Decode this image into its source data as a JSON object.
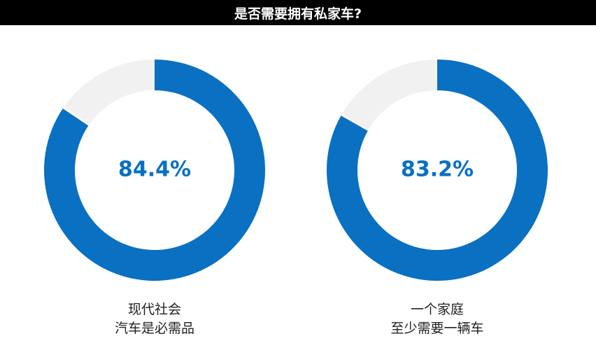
{
  "title": "是否需要拥有私家车?",
  "colors": {
    "accent": "#0A70C2",
    "track": "#F1F1F1",
    "title_bg": "#000000",
    "title_text": "#FFFFFF"
  },
  "chart_data": [
    {
      "type": "pie",
      "style": "donut",
      "value": 84.4,
      "remainder": 15.6,
      "value_label": "84.4%",
      "caption": [
        "现代社会",
        "汽车是必需品"
      ]
    },
    {
      "type": "pie",
      "style": "donut",
      "value": 83.2,
      "remainder": 16.8,
      "value_label": "83.2%",
      "caption": [
        "一个家庭",
        "至少需要一辆车"
      ]
    }
  ]
}
